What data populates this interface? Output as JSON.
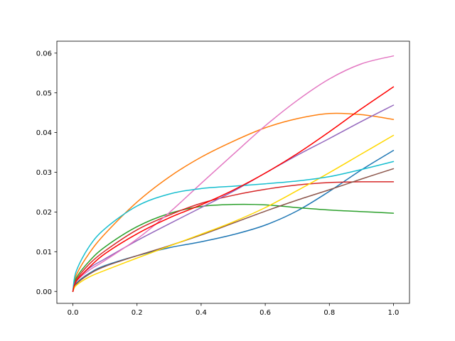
{
  "chart_data": {
    "type": "line",
    "title": "",
    "xlabel": "",
    "ylabel": "",
    "xlim": [
      -0.05,
      1.05
    ],
    "ylim": [
      -0.003,
      0.063
    ],
    "grid": false,
    "legend": "none",
    "xticks": [
      {
        "value": 0.0,
        "label": "0.0"
      },
      {
        "value": 0.2,
        "label": "0.2"
      },
      {
        "value": 0.4,
        "label": "0.4"
      },
      {
        "value": 0.6,
        "label": "0.6"
      },
      {
        "value": 0.8,
        "label": "0.8"
      },
      {
        "value": 1.0,
        "label": "1.0"
      }
    ],
    "yticks": [
      {
        "value": 0.0,
        "label": "0.00"
      },
      {
        "value": 0.01,
        "label": "0.01"
      },
      {
        "value": 0.02,
        "label": "0.02"
      },
      {
        "value": 0.03,
        "label": "0.03"
      },
      {
        "value": 0.04,
        "label": "0.04"
      },
      {
        "value": 0.05,
        "label": "0.05"
      },
      {
        "value": 0.06,
        "label": "0.06"
      }
    ],
    "x": [
      0.0,
      0.01,
      0.05,
      0.1,
      0.2,
      0.3,
      0.4,
      0.5,
      0.6,
      0.7,
      0.8,
      0.9,
      1.0
    ],
    "series": [
      {
        "color": "#1f77b4",
        "values": [
          0.0,
          0.002,
          0.0045,
          0.0065,
          0.009,
          0.011,
          0.0125,
          0.0143,
          0.0167,
          0.0203,
          0.0252,
          0.0306,
          0.0355
        ]
      },
      {
        "color": "#ff7f0e",
        "values": [
          0.0,
          0.004,
          0.0095,
          0.0145,
          0.0225,
          0.0288,
          0.0338,
          0.0378,
          0.0412,
          0.0435,
          0.0448,
          0.0445,
          0.0433
        ]
      },
      {
        "color": "#2ca02c",
        "values": [
          0.0,
          0.0033,
          0.0075,
          0.0112,
          0.0163,
          0.0196,
          0.0214,
          0.0219,
          0.0218,
          0.0211,
          0.0205,
          0.0201,
          0.0197
        ]
      },
      {
        "color": "#d62728",
        "values": [
          0.0,
          0.0028,
          0.0068,
          0.0102,
          0.0155,
          0.0192,
          0.0222,
          0.0242,
          0.0257,
          0.0268,
          0.0274,
          0.0276,
          0.0276
        ]
      },
      {
        "color": "#9467bd",
        "values": [
          0.0,
          0.0025,
          0.0058,
          0.0082,
          0.0128,
          0.017,
          0.0211,
          0.0252,
          0.0298,
          0.0343,
          0.0385,
          0.0428,
          0.0469
        ]
      },
      {
        "color": "#8c564b",
        "values": [
          0.0,
          0.0018,
          0.0043,
          0.0063,
          0.009,
          0.0115,
          0.0142,
          0.0172,
          0.0202,
          0.023,
          0.0256,
          0.0283,
          0.0309
        ]
      },
      {
        "color": "#e377c2",
        "values": [
          0.0,
          0.0025,
          0.0053,
          0.0078,
          0.0132,
          0.0198,
          0.0272,
          0.0345,
          0.0417,
          0.0481,
          0.0535,
          0.0573,
          0.0593
        ]
      },
      {
        "color": "#ffd700",
        "values": [
          0.0,
          0.0015,
          0.0036,
          0.0053,
          0.0084,
          0.0114,
          0.0144,
          0.0175,
          0.0211,
          0.0254,
          0.0299,
          0.0346,
          0.0393
        ]
      },
      {
        "color": "#17becf",
        "values": [
          0.0,
          0.005,
          0.0112,
          0.0158,
          0.0215,
          0.0245,
          0.0259,
          0.0265,
          0.0271,
          0.0278,
          0.0289,
          0.0307,
          0.0327
        ]
      },
      {
        "color": "#ff0000",
        "values": [
          0.0,
          0.0025,
          0.006,
          0.0095,
          0.0145,
          0.0185,
          0.0218,
          0.0255,
          0.0298,
          0.0347,
          0.0402,
          0.046,
          0.0515
        ]
      }
    ]
  }
}
